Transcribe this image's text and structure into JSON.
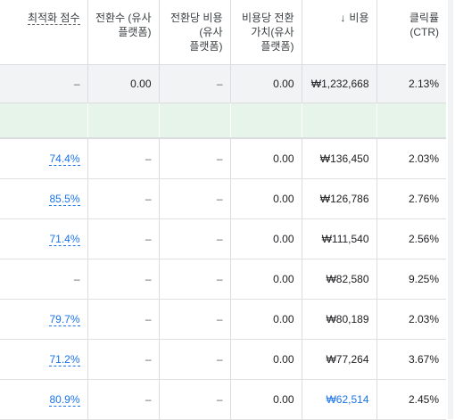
{
  "headers": [
    {
      "line1": "최적화 점수",
      "line2": "",
      "line3": ""
    },
    {
      "line1": "전환수 (유사",
      "line2": "플랫폼)",
      "line3": ""
    },
    {
      "line1": "전환당 비용",
      "line2": "(유사",
      "line3": "플랫폼)"
    },
    {
      "line1": "비용당 전환",
      "line2": "가치(유사",
      "line3": "플랫폼)"
    },
    {
      "line1": "비용",
      "line2": "",
      "line3": ""
    },
    {
      "line1": "클릭률(CTR)",
      "line2": "",
      "line3": ""
    }
  ],
  "sort_icon": "arrow-down-icon",
  "total_row": {
    "score": "–",
    "conv": "0.00",
    "cpa": "–",
    "value": "0.00",
    "cost": "₩1,232,668",
    "ctr": "2.13%"
  },
  "rows": [
    {
      "score": "74.4%",
      "conv": "–",
      "cpa": "–",
      "value": "0.00",
      "cost": "₩136,450",
      "ctr": "2.03%"
    },
    {
      "score": "85.5%",
      "conv": "–",
      "cpa": "–",
      "value": "0.00",
      "cost": "₩126,786",
      "ctr": "2.76%"
    },
    {
      "score": "71.4%",
      "conv": "–",
      "cpa": "–",
      "value": "0.00",
      "cost": "₩111,540",
      "ctr": "2.56%"
    },
    {
      "score": "–",
      "conv": "–",
      "cpa": "–",
      "value": "0.00",
      "cost": "₩82,580",
      "ctr": "9.25%"
    },
    {
      "score": "79.7%",
      "conv": "–",
      "cpa": "–",
      "value": "0.00",
      "cost": "₩80,189",
      "ctr": "2.03%"
    },
    {
      "score": "71.2%",
      "conv": "–",
      "cpa": "–",
      "value": "0.00",
      "cost": "₩77,264",
      "ctr": "3.67%"
    },
    {
      "score": "80.9%",
      "conv": "–",
      "cpa": "–",
      "value": "0.00",
      "cost": "₩62,514",
      "ctr": "2.45%"
    }
  ],
  "colors": {
    "link": "#1a73e8",
    "total_bg": "#f1f3f4",
    "highlight_bg": "#e6f4ea"
  }
}
